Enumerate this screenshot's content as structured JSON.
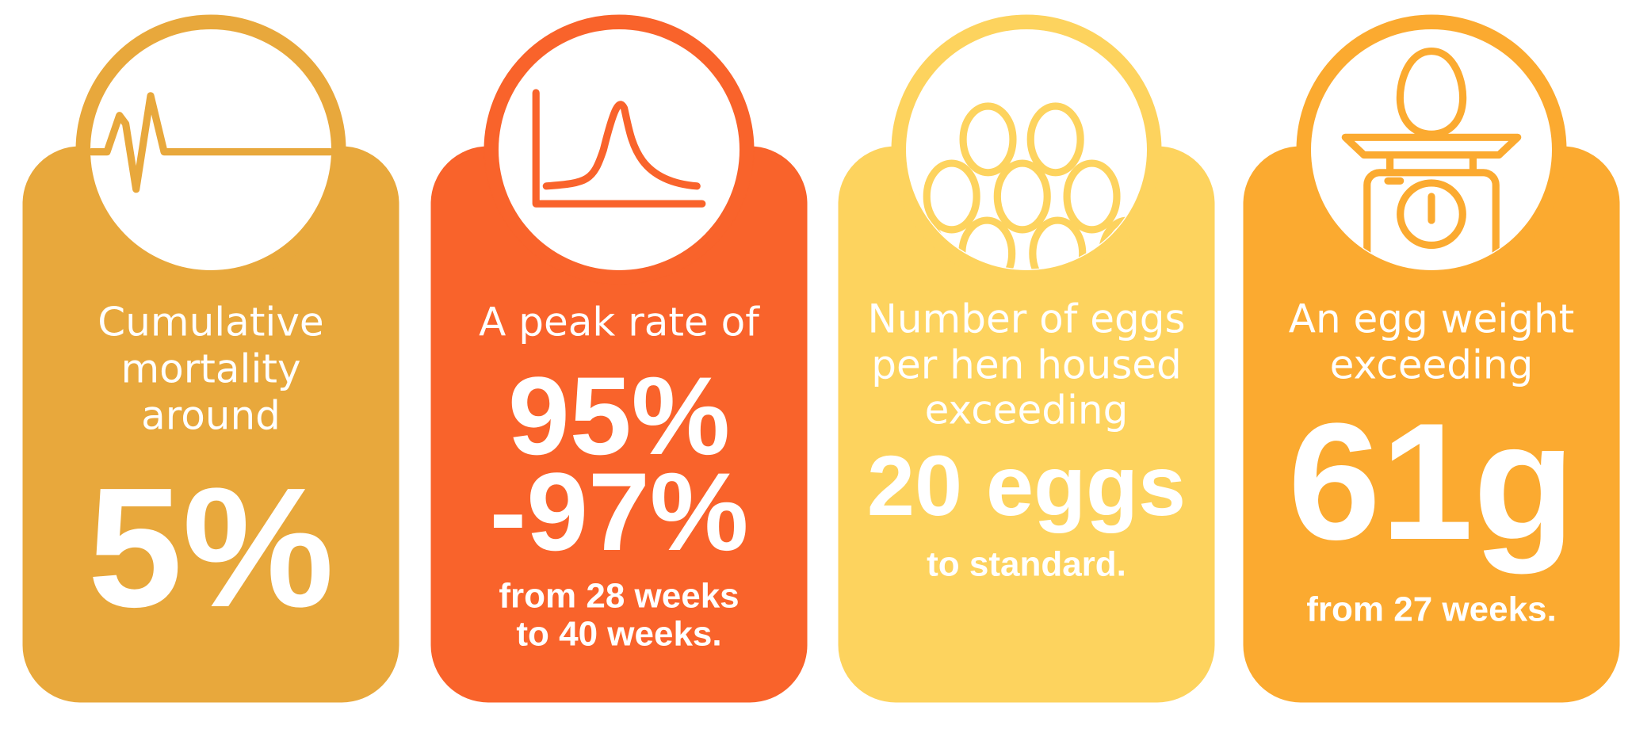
{
  "cards": [
    {
      "intro": [
        "Cumulative",
        "mortality",
        "around"
      ],
      "highlight": [
        "5%"
      ]
    },
    {
      "intro": [
        "A peak rate of"
      ],
      "highlight": [
        "95%",
        "-97%"
      ],
      "footer": [
        "from 28 weeks",
        "to 40 weeks."
      ]
    },
    {
      "intro": [
        "Number of eggs",
        "per hen housed",
        "exceeding"
      ],
      "highlight": [
        "20 eggs"
      ],
      "footer": [
        "to standard."
      ]
    },
    {
      "intro": [
        "An egg weight",
        "exceeding"
      ],
      "highlight": [
        "61g"
      ],
      "footer": [
        "from 27 weeks."
      ]
    }
  ]
}
